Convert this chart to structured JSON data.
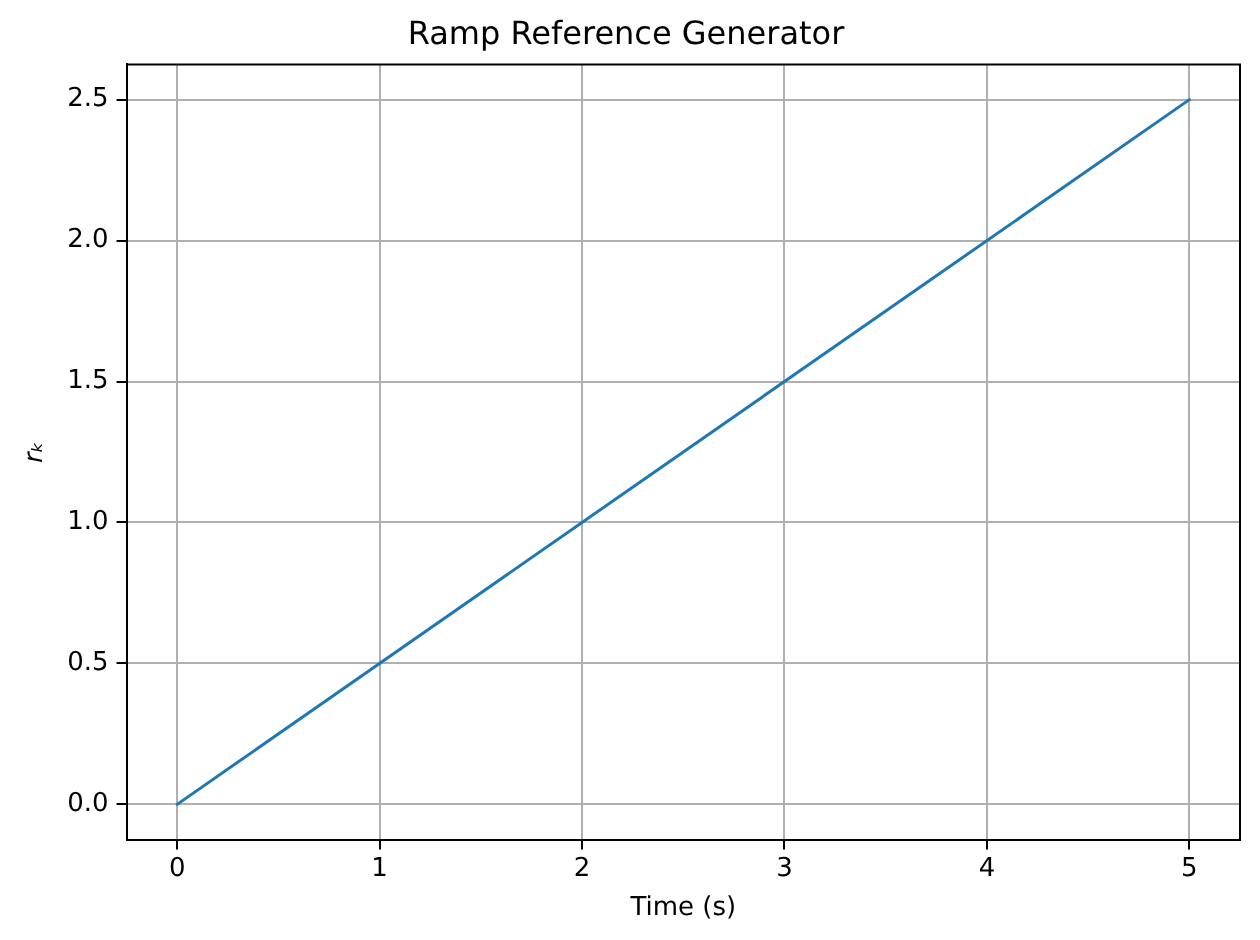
{
  "chart_data": {
    "type": "line",
    "title": "Ramp Reference Generator",
    "xlabel": "Time (s)",
    "ylabel": "rₖ",
    "x": [
      0,
      5
    ],
    "series": [
      {
        "color": "#1f77b4",
        "values": [
          0,
          2.5
        ]
      }
    ],
    "xlim": [
      -0.25,
      5.25
    ],
    "xticks": [
      0,
      1,
      2,
      3,
      4,
      5
    ],
    "ylim": [
      -0.125,
      2.625
    ],
    "yticks": [
      {
        "value": 0,
        "label": "0.0"
      },
      0.5,
      {
        "value": 1,
        "label": "1.0"
      },
      1.5,
      {
        "value": 2,
        "label": "2.0"
      },
      2.5
    ],
    "grid": true
  }
}
